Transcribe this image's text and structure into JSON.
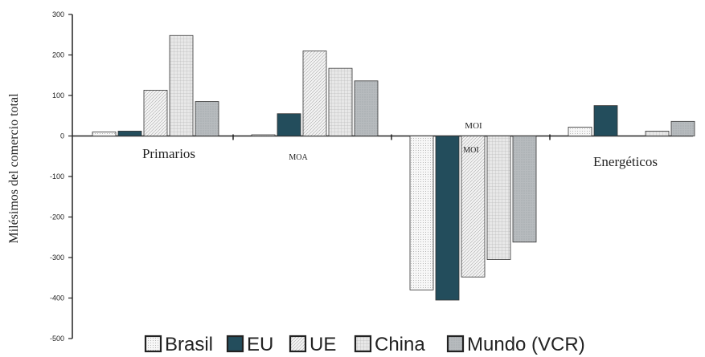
{
  "chart_data": {
    "type": "bar",
    "title": "",
    "xlabel": "",
    "ylabel": "Milésimos del comercio total",
    "ylim": [
      -500,
      300
    ],
    "yticks": [
      300,
      200,
      100,
      0,
      -100,
      -200,
      -300,
      -400,
      -500
    ],
    "categories": [
      "Primarios",
      "MOA",
      "MOI",
      "Energéticos"
    ],
    "extra_label": "MOI",
    "series": [
      {
        "name": "Brasil",
        "values": [
          10,
          3,
          -380,
          22
        ],
        "color": "#f4f4f4",
        "pattern": "dots"
      },
      {
        "name": "EU",
        "values": [
          12,
          55,
          -405,
          75
        ],
        "color": "#234d5c",
        "pattern": "solid"
      },
      {
        "name": "UE",
        "values": [
          113,
          210,
          -348,
          0
        ],
        "color": "#eeeeee",
        "pattern": "diagonal"
      },
      {
        "name": "China",
        "values": [
          248,
          167,
          -305,
          12
        ],
        "color": "#dddddd",
        "pattern": "grid"
      },
      {
        "name": "Mundo (VCR)",
        "values": [
          85,
          136,
          -262,
          36
        ],
        "color": "#b5b9bc",
        "pattern": "shade"
      }
    ],
    "grid": false,
    "legend_position": "bottom"
  }
}
